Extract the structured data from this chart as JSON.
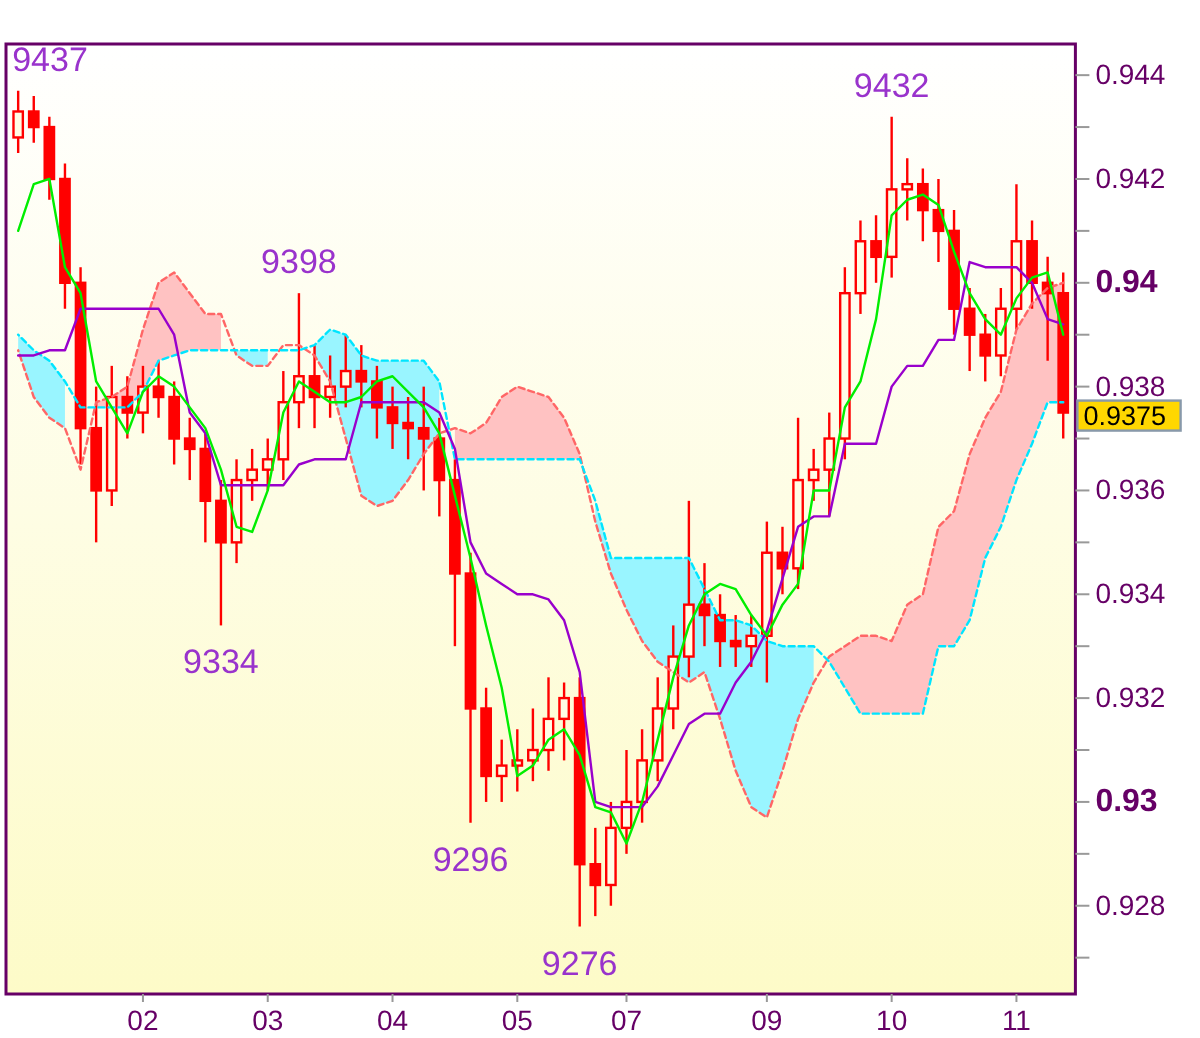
{
  "chart_data": {
    "type": "candlestick",
    "color": "#ff0000",
    "categories": [
      null,
      null,
      null,
      null,
      null,
      null,
      null,
      null,
      "02",
      null,
      null,
      null,
      null,
      null,
      null,
      null,
      "03",
      null,
      null,
      null,
      null,
      null,
      null,
      null,
      "04",
      null,
      null,
      null,
      null,
      null,
      null,
      null,
      "05",
      null,
      null,
      null,
      null,
      null,
      null,
      "07",
      null,
      null,
      null,
      null,
      null,
      null,
      null,
      null,
      "09",
      null,
      null,
      null,
      null,
      null,
      null,
      null,
      "10",
      null,
      null,
      null,
      null,
      null,
      null,
      null,
      "11",
      null,
      null,
      null
    ],
    "ohlc": [
      [
        0.9428,
        0.9437,
        0.9425,
        0.9433
      ],
      [
        0.9433,
        0.9436,
        0.9427,
        0.943
      ],
      [
        0.943,
        0.9432,
        0.9416,
        0.942
      ],
      [
        0.942,
        0.9423,
        0.9395,
        0.94
      ],
      [
        0.94,
        0.9403,
        0.9365,
        0.9372
      ],
      [
        0.9372,
        0.938,
        0.935,
        0.936
      ],
      [
        0.936,
        0.9384,
        0.9357,
        0.9378
      ],
      [
        0.9378,
        0.9382,
        0.937,
        0.9375
      ],
      [
        0.9375,
        0.9384,
        0.9371,
        0.938
      ],
      [
        0.938,
        0.9385,
        0.9374,
        0.9378
      ],
      [
        0.9378,
        0.9381,
        0.9365,
        0.937
      ],
      [
        0.937,
        0.9374,
        0.9362,
        0.9368
      ],
      [
        0.9368,
        0.9371,
        0.935,
        0.9358
      ],
      [
        0.9358,
        0.9362,
        0.9334,
        0.935
      ],
      [
        0.935,
        0.9366,
        0.9346,
        0.9362
      ],
      [
        0.9362,
        0.9368,
        0.9358,
        0.9364
      ],
      [
        0.9364,
        0.937,
        0.936,
        0.9366
      ],
      [
        0.9366,
        0.9383,
        0.9362,
        0.9377
      ],
      [
        0.9377,
        0.9398,
        0.9372,
        0.9382
      ],
      [
        0.9382,
        0.9388,
        0.9372,
        0.9378
      ],
      [
        0.9378,
        0.9386,
        0.9374,
        0.938
      ],
      [
        0.938,
        0.939,
        0.9376,
        0.9383
      ],
      [
        0.9383,
        0.9388,
        0.9376,
        0.9381
      ],
      [
        0.9381,
        0.9384,
        0.937,
        0.9376
      ],
      [
        0.9376,
        0.938,
        0.9368,
        0.9373
      ],
      [
        0.9373,
        0.9378,
        0.9366,
        0.9372
      ],
      [
        0.9372,
        0.938,
        0.936,
        0.937
      ],
      [
        0.937,
        0.9374,
        0.9355,
        0.9362
      ],
      [
        0.9362,
        0.9366,
        0.933,
        0.9344
      ],
      [
        0.9344,
        0.9348,
        0.9296,
        0.9318
      ],
      [
        0.9318,
        0.9322,
        0.93,
        0.9305
      ],
      [
        0.9305,
        0.9312,
        0.93,
        0.9307
      ],
      [
        0.9307,
        0.9314,
        0.9302,
        0.9308
      ],
      [
        0.9308,
        0.9318,
        0.9304,
        0.931
      ],
      [
        0.931,
        0.9324,
        0.9306,
        0.9316
      ],
      [
        0.9316,
        0.9323,
        0.9308,
        0.932
      ],
      [
        0.932,
        0.9324,
        0.9276,
        0.9288
      ],
      [
        0.9288,
        0.9295,
        0.9278,
        0.9284
      ],
      [
        0.9284,
        0.93,
        0.928,
        0.9295
      ],
      [
        0.9295,
        0.931,
        0.929,
        0.93
      ],
      [
        0.93,
        0.9314,
        0.9296,
        0.9308
      ],
      [
        0.9308,
        0.9324,
        0.9304,
        0.9318
      ],
      [
        0.9318,
        0.9334,
        0.9314,
        0.9328
      ],
      [
        0.9328,
        0.9358,
        0.9324,
        0.9338
      ],
      [
        0.9338,
        0.9346,
        0.933,
        0.9336
      ],
      [
        0.9336,
        0.934,
        0.9326,
        0.9331
      ],
      [
        0.9331,
        0.9336,
        0.9326,
        0.933
      ],
      [
        0.933,
        0.9336,
        0.9326,
        0.9332
      ],
      [
        0.9332,
        0.9354,
        0.9323,
        0.9348
      ],
      [
        0.9348,
        0.9353,
        0.934,
        0.9345
      ],
      [
        0.9345,
        0.9374,
        0.9341,
        0.9362
      ],
      [
        0.9362,
        0.9368,
        0.9358,
        0.9364
      ],
      [
        0.9364,
        0.9375,
        0.9355,
        0.937
      ],
      [
        0.937,
        0.9403,
        0.9366,
        0.9398
      ],
      [
        0.9398,
        0.9412,
        0.9394,
        0.9408
      ],
      [
        0.9408,
        0.9413,
        0.94,
        0.9405
      ],
      [
        0.9405,
        0.9432,
        0.9401,
        0.9418
      ],
      [
        0.9418,
        0.9424,
        0.9412,
        0.9419
      ],
      [
        0.9419,
        0.9422,
        0.9408,
        0.9414
      ],
      [
        0.9414,
        0.942,
        0.9404,
        0.941
      ],
      [
        0.941,
        0.9414,
        0.939,
        0.9395
      ],
      [
        0.9395,
        0.9399,
        0.9383,
        0.939
      ],
      [
        0.939,
        0.9394,
        0.9381,
        0.9386
      ],
      [
        0.9386,
        0.9399,
        0.9382,
        0.9395
      ],
      [
        0.9395,
        0.9419,
        0.9391,
        0.9408
      ],
      [
        0.9408,
        0.9412,
        0.9395,
        0.94
      ],
      [
        0.94,
        0.9405,
        0.9385,
        0.9398
      ],
      [
        0.9398,
        0.9402,
        0.937,
        0.9375
      ]
    ],
    "value_labels": [
      "9437",
      null,
      null,
      null,
      null,
      null,
      null,
      null,
      null,
      null,
      null,
      null,
      null,
      "9334",
      null,
      null,
      null,
      null,
      "9398",
      null,
      null,
      null,
      null,
      null,
      null,
      null,
      null,
      null,
      null,
      "9296",
      null,
      null,
      null,
      null,
      null,
      null,
      "9276",
      null,
      null,
      null,
      null,
      null,
      null,
      null,
      null,
      null,
      null,
      null,
      null,
      null,
      null,
      null,
      null,
      null,
      null,
      null,
      "9432",
      null,
      null,
      null,
      null,
      null,
      null,
      null,
      null,
      null,
      null,
      null
    ],
    "series": [
      {
        "type": "line",
        "color": "#ff6666",
        "line_style": "dashed",
        "values": [
          0.9387,
          0.9378,
          0.9374,
          0.9372,
          0.9364,
          0.9377,
          0.9378,
          0.938,
          0.9391,
          0.94,
          0.9402,
          0.9398,
          0.9394,
          0.9394,
          0.9386,
          0.9384,
          0.9384,
          0.9388,
          0.9388,
          0.9386,
          0.9381,
          0.937,
          0.9359,
          0.9357,
          0.9358,
          0.9362,
          0.9367,
          0.9371,
          0.9372,
          0.9371,
          0.9373,
          0.9378,
          0.938,
          0.9379,
          0.9378,
          0.9374,
          0.9367,
          0.9354,
          0.9344,
          0.9337,
          0.9331,
          0.9327,
          0.9325,
          0.9323,
          0.9325,
          0.9316,
          0.9306,
          0.9299,
          0.9297,
          0.9306,
          0.9316,
          0.9323,
          0.9328,
          0.933,
          0.9332,
          0.9332,
          0.9331,
          0.9338,
          0.934,
          0.9353,
          0.9356,
          0.9367,
          0.9374,
          0.9379,
          0.9391,
          0.9396,
          0.9399,
          0.94
        ],
        "upper": [
          null,
          null,
          null,
          null,
          null,
          0.9377,
          0.9378,
          0.938,
          0.9391,
          0.94,
          0.9402,
          0.9398,
          0.9394,
          0.9394,
          null,
          null,
          null,
          null,
          null,
          null,
          null,
          null,
          null,
          null,
          null,
          null,
          null,
          null,
          0.9372,
          0.9371,
          0.9373,
          0.9378,
          0.938,
          0.9379,
          0.9378,
          0.9374,
          0.9367,
          null,
          null,
          null,
          null,
          null,
          null,
          null,
          null,
          null,
          null,
          null,
          null,
          null,
          null,
          null,
          0.9328,
          0.933,
          0.9332,
          0.9332,
          0.9331,
          0.9338,
          0.934,
          0.9353,
          0.9356,
          0.9367,
          0.9374,
          0.9379,
          0.9391,
          0.9396,
          0.9399,
          0.94
        ],
        "lower": [
          null,
          null,
          null,
          null,
          null,
          0.9376,
          0.9376,
          0.9376,
          0.9379,
          0.9385,
          0.9386,
          0.9387,
          0.9387,
          0.9387,
          null,
          null,
          null,
          null,
          null,
          null,
          null,
          null,
          null,
          null,
          null,
          null,
          null,
          null,
          0.9366,
          0.9366,
          0.9366,
          0.9366,
          0.9366,
          0.9366,
          0.9366,
          0.9366,
          0.9366,
          null,
          null,
          null,
          null,
          null,
          null,
          null,
          null,
          null,
          null,
          null,
          null,
          null,
          null,
          null,
          0.9327,
          0.9322,
          0.9317,
          0.9317,
          0.9317,
          0.9317,
          0.9317,
          0.933,
          0.933,
          0.9335,
          0.9347,
          0.9353,
          0.9362,
          0.9369,
          0.9377,
          0.9377
        ]
      },
      {
        "type": "line",
        "color": "#00e5ff",
        "line_style": "dashed",
        "values": [
          0.939,
          0.9387,
          0.9385,
          0.9381,
          0.9376,
          0.9376,
          0.9376,
          0.9376,
          0.9379,
          0.9385,
          0.9386,
          0.9387,
          0.9387,
          0.9387,
          0.9387,
          0.9387,
          0.9387,
          0.9387,
          0.9387,
          0.9388,
          0.9391,
          0.939,
          0.9386,
          0.9385,
          0.9385,
          0.9385,
          0.9385,
          0.9381,
          0.9366,
          0.9366,
          0.9366,
          0.9366,
          0.9366,
          0.9366,
          0.9366,
          0.9366,
          0.9366,
          0.9358,
          0.9347,
          0.9347,
          0.9347,
          0.9347,
          0.9347,
          0.9347,
          0.9341,
          0.9335,
          0.9335,
          0.9334,
          0.9331,
          0.933,
          0.933,
          0.933,
          0.9327,
          0.9322,
          0.9317,
          0.9317,
          0.9317,
          0.9317,
          0.9317,
          0.933,
          0.933,
          0.9335,
          0.9347,
          0.9353,
          0.9362,
          0.9369,
          0.9377,
          0.9377
        ],
        "upper": [
          0.939,
          0.9387,
          0.9385,
          0.9381,
          null,
          null,
          null,
          null,
          null,
          null,
          null,
          null,
          null,
          null,
          0.9387,
          0.9387,
          0.9387,
          null,
          null,
          0.9388,
          0.9391,
          0.939,
          0.9386,
          0.9385,
          0.9385,
          0.9385,
          0.9385,
          0.9381,
          null,
          null,
          null,
          null,
          null,
          null,
          null,
          null,
          null,
          0.9358,
          0.9347,
          0.9347,
          0.9347,
          0.9347,
          0.9347,
          0.9347,
          0.9341,
          0.9335,
          0.9335,
          0.9334,
          0.9331,
          0.933,
          0.933,
          0.933,
          null,
          null,
          null,
          null,
          null,
          null,
          null,
          null,
          null,
          null,
          null,
          null,
          null,
          null,
          null,
          null
        ],
        "lower": [
          0.9387,
          0.9378,
          0.9374,
          0.9372,
          null,
          null,
          null,
          null,
          null,
          null,
          null,
          null,
          null,
          null,
          0.9386,
          0.9384,
          0.9384,
          null,
          null,
          0.9386,
          0.9381,
          0.937,
          0.9359,
          0.9357,
          0.9358,
          0.9362,
          0.9367,
          0.9371,
          null,
          null,
          null,
          null,
          null,
          null,
          null,
          null,
          null,
          0.9354,
          0.9344,
          0.9337,
          0.9331,
          0.9327,
          0.9325,
          0.9323,
          0.9325,
          0.9316,
          0.9306,
          0.9299,
          0.9297,
          0.9306,
          0.9316,
          0.9323,
          null,
          null,
          null,
          null,
          null,
          null,
          null,
          null,
          null,
          null,
          null,
          null,
          null,
          null,
          null,
          null
        ]
      },
      {
        "type": "line",
        "color": "#9900cc",
        "values": [
          0.9386,
          0.9386,
          0.9387,
          0.9387,
          0.9395,
          0.9395,
          0.9395,
          0.9395,
          0.9395,
          0.9395,
          0.939,
          0.9375,
          0.9371,
          0.9361,
          0.9361,
          0.9361,
          0.9361,
          0.9361,
          0.9365,
          0.9366,
          0.9366,
          0.9366,
          0.9377,
          0.9377,
          0.9377,
          0.9377,
          0.9377,
          0.9375,
          0.9368,
          0.935,
          0.9344,
          0.9342,
          0.934,
          0.934,
          0.9339,
          0.9335,
          0.9325,
          0.93,
          0.9299,
          0.9299,
          0.9299,
          0.9303,
          0.9309,
          0.9315,
          0.9317,
          0.9317,
          0.9323,
          0.9327,
          0.9333,
          0.9343,
          0.9353,
          0.9355,
          0.9355,
          0.9369,
          0.9369,
          0.9369,
          0.938,
          0.9384,
          0.9384,
          0.9389,
          0.9389,
          0.9404,
          0.9403,
          0.9403,
          0.9403,
          0.94,
          0.9393,
          0.9392
        ]
      },
      {
        "type": "line",
        "color": "#00ee00",
        "values": [
          0.941,
          0.9419,
          0.942,
          0.9403,
          0.9398,
          0.9381,
          0.9376,
          0.9371,
          0.9379,
          0.9382,
          0.938,
          0.9376,
          0.9372,
          0.9364,
          0.9353,
          0.9352,
          0.936,
          0.9375,
          0.9381,
          0.9379,
          0.9377,
          0.9377,
          0.9378,
          0.9381,
          0.9382,
          0.9379,
          0.9376,
          0.9371,
          0.9359,
          0.9347,
          0.9334,
          0.9322,
          0.9305,
          0.9307,
          0.9312,
          0.9314,
          0.9309,
          0.9299,
          0.9298,
          0.9292,
          0.93,
          0.9312,
          0.9324,
          0.9334,
          0.934,
          0.9342,
          0.9341,
          0.9336,
          0.9332,
          0.9338,
          0.9342,
          0.936,
          0.936,
          0.9376,
          0.9381,
          0.9393,
          0.9413,
          0.9416,
          0.9417,
          0.9415,
          0.9406,
          0.9398,
          0.9393,
          0.939,
          0.9397,
          0.9401,
          0.9402,
          0.939
        ]
      }
    ],
    "ylim": [
      0.9263,
      0.9446
    ],
    "yticks": [
      {
        "value": 0.927,
        "label": null
      },
      0.928,
      {
        "value": 0.929,
        "label": null
      },
      0.93,
      {
        "value": 0.931,
        "label": null
      },
      0.932,
      {
        "value": 0.933,
        "label": null
      },
      0.934,
      {
        "value": 0.935,
        "label": null
      },
      0.936,
      {
        "value": 0.937,
        "label": null
      },
      0.938,
      {
        "value": 0.939,
        "label": null
      },
      0.94,
      {
        "value": 0.941,
        "label": null
      },
      0.942,
      {
        "value": 0.943,
        "label": null
      },
      0.944
    ],
    "annotations": [
      "0.9375"
    ]
  }
}
